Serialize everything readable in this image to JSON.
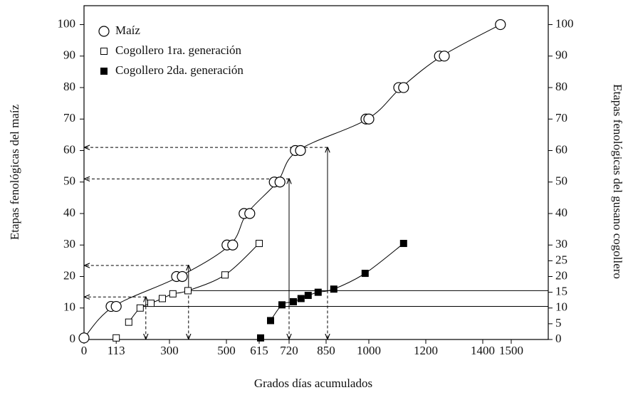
{
  "chart_data": {
    "type": "scatter",
    "x_label": "Grados días acumulados",
    "y_label": "Etapas fenológicas del maíz",
    "y2_label": "Etapas fenológicas del gusano cogollero",
    "xlim": [
      0,
      1630
    ],
    "ylim": [
      0,
      106
    ],
    "y2lim": [
      0,
      106
    ],
    "xticks": [
      0,
      113,
      300,
      500,
      615,
      720,
      850,
      1000,
      1200,
      1400,
      1500
    ],
    "yticks": [
      0,
      10,
      20,
      30,
      40,
      50,
      60,
      70,
      80,
      90,
      100
    ],
    "y2ticks": [
      0,
      5,
      10,
      15,
      20,
      25,
      30,
      40,
      50,
      60,
      70,
      80,
      90,
      100
    ],
    "series": [
      {
        "name": "Maíz",
        "marker": "open-circle",
        "color": "#000000",
        "x": [
          0,
          95,
          113,
          325,
          345,
          502,
          522,
          562,
          582,
          668,
          688,
          742,
          760,
          990,
          1000,
          1105,
          1122,
          1248,
          1265,
          1462
        ],
        "values": [
          0.5,
          10.5,
          10.5,
          20,
          20,
          30,
          30,
          40,
          40,
          50,
          50,
          60,
          60,
          70,
          70,
          80,
          80,
          90,
          90,
          100
        ]
      },
      {
        "name": "Cogollero 1ra. generación",
        "marker": "open-square",
        "color": "#000000",
        "x": [
          113,
          157,
          197,
          235,
          275,
          312,
          365,
          495,
          615
        ],
        "values": [
          0.5,
          5.5,
          10,
          11.5,
          13,
          14.5,
          15.5,
          20.5,
          30.5
        ]
      },
      {
        "name": "Cogollero 2da. generación",
        "marker": "filled-square",
        "color": "#000000",
        "x": [
          620,
          655,
          695,
          735,
          762,
          787,
          822,
          877,
          987,
          1122
        ],
        "values": [
          0.5,
          6,
          11,
          12,
          13,
          14,
          15,
          16,
          21,
          30.5
        ]
      }
    ],
    "reference_lines": [
      {
        "x": 365,
        "y": 15.5
      },
      {
        "x": 197,
        "y": 10.5
      }
    ],
    "arrows": [
      {
        "x": 217,
        "from": 10.5,
        "to": 13.5
      },
      {
        "x": 367,
        "from": 15.5,
        "to": 23.5
      },
      {
        "x": 720,
        "from": 10.5,
        "to": 51
      },
      {
        "x": 855,
        "from": 15.5,
        "to": 61
      }
    ],
    "legend": "upper left"
  }
}
